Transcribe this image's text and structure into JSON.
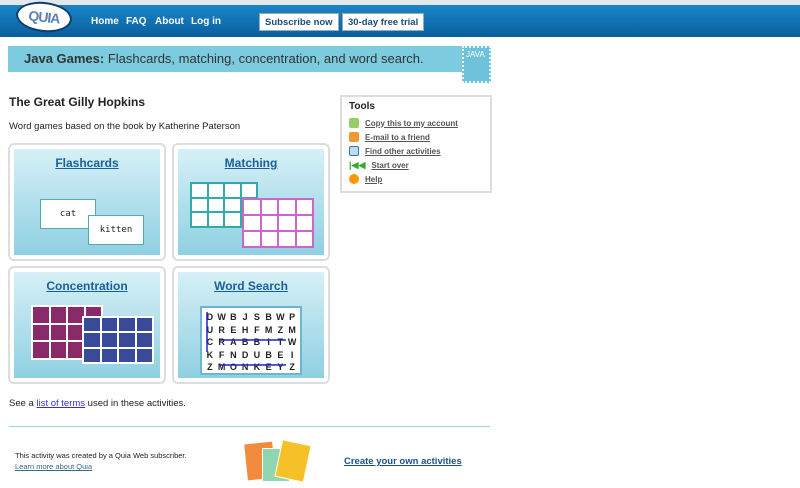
{
  "header": {
    "logo": "QUIA",
    "nav": [
      "Home",
      "FAQ",
      "About",
      "Log in"
    ],
    "subscribe": "Subscribe now",
    "trial": "30-day free trial"
  },
  "banner": {
    "bold": "Java Games:",
    "text": " Flashcards, matching, concentration, and word search.",
    "icon_text": "JAVA"
  },
  "page": {
    "title": "The Great Gilly Hopkins",
    "subtitle": "Word games based on the book by Katherine Paterson"
  },
  "tiles": {
    "flashcards": "Flashcards",
    "matching": "Matching",
    "concentration": "Concentration",
    "word_search": "Word Search",
    "card1": "cat",
    "card2": "kitten"
  },
  "word_grid": [
    "DWBJSBWP",
    "UREHFMZM",
    "CRABBITW",
    "KFNDUBEI",
    "ZMONKEYZ"
  ],
  "tools": {
    "title": "Tools",
    "items": [
      "Copy this to my account",
      "E-mail to a friend",
      "Find other activities",
      "Start over",
      "Help"
    ]
  },
  "terms": {
    "pre": "See a ",
    "link": "list of terms",
    "post": " used in these activities."
  },
  "footer": {
    "created": "This activity was created by a Quia Web subscriber.",
    "learn": "Learn more about Quia",
    "create": "Create your own activities"
  }
}
